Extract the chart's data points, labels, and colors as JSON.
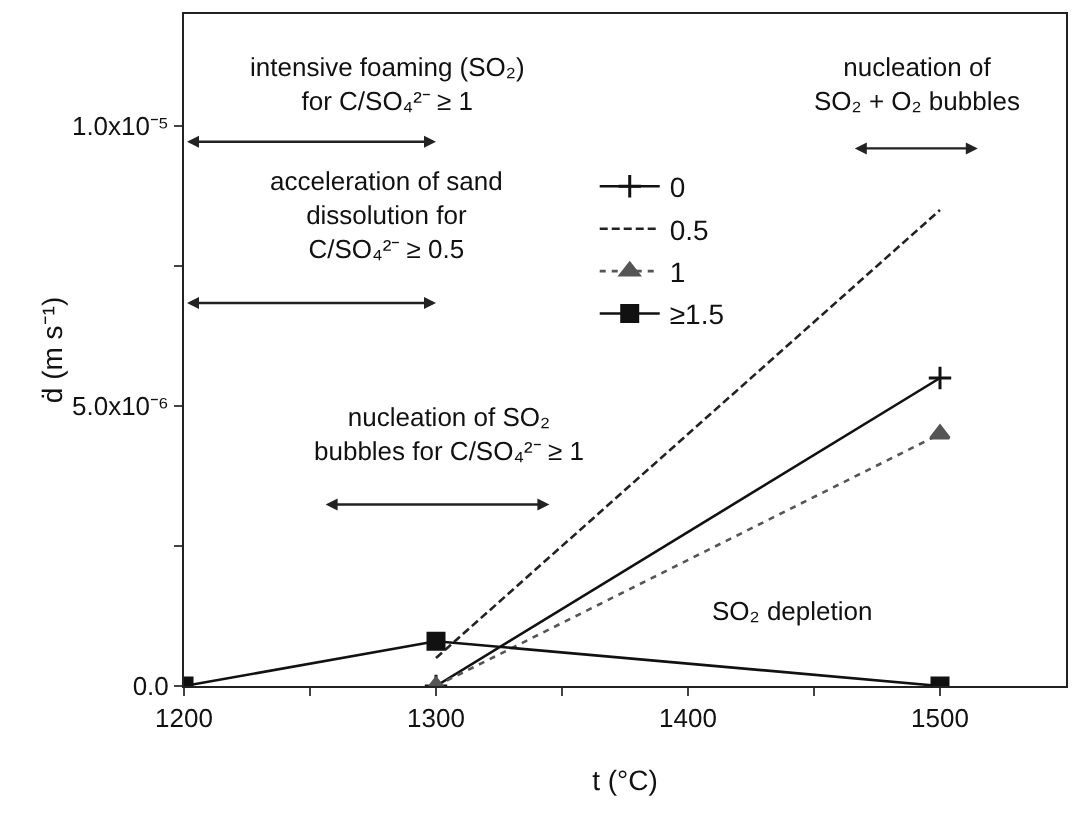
{
  "chart_data": {
    "type": "line",
    "xlabel": "t (°C)",
    "ylabel": "ḋ (m s⁻¹)",
    "xlim": [
      1200,
      1550
    ],
    "xticks": [
      1200,
      {
        "value": 1250,
        "label": null
      },
      1300,
      {
        "value": 1350,
        "label": null
      },
      1400,
      {
        "value": 1450,
        "label": null
      },
      1500
    ],
    "ylim": [
      0,
      1.2e-05
    ],
    "yticks": [
      {
        "value": 0,
        "label": "0.0"
      },
      {
        "value": 2.5e-06,
        "label": null
      },
      {
        "value": 5e-06,
        "label": "5.0x10⁻⁶"
      },
      {
        "value": 7.5e-06,
        "label": null
      },
      {
        "value": 1e-05,
        "label": "1.0x10⁻⁵"
      }
    ],
    "grid": false,
    "legend": "top",
    "legend_title": null,
    "series": [
      {
        "name": "0",
        "color": "#111111",
        "x": [
          1300,
          1500
        ],
        "values": [
          0,
          5.5e-06
        ],
        "marker": "cross",
        "line_style": "solid"
      },
      {
        "name": "0.5",
        "color": "#222222",
        "x": [
          1300,
          1500
        ],
        "values": [
          5e-07,
          8.5e-06
        ],
        "marker": "none",
        "line_style": "dashed"
      },
      {
        "name": "1",
        "color": "#555555",
        "x": [
          1300,
          1500
        ],
        "values": [
          0,
          4.5e-06
        ],
        "marker": "triangle",
        "line_style": "dotted"
      },
      {
        "name": "≥1.5",
        "color": "#111111",
        "x": [
          1200,
          1300,
          1500
        ],
        "values": [
          0,
          8e-07,
          0
        ],
        "marker": "square",
        "line_style": "solid"
      }
    ],
    "annotations": [
      "intensive foaming (SO₂)\nfor C/SO₄²⁻ ≥ 1",
      "acceleration of sand\ndissolution for\nC/SO₄²⁻ ≥ 0.5",
      "nucleation of\nSO₂ + O₂ bubbles",
      "nucleation of SO₂\nbubbles for C/SO₄²⁻ ≥ 1",
      "SO₂ depletion"
    ]
  }
}
